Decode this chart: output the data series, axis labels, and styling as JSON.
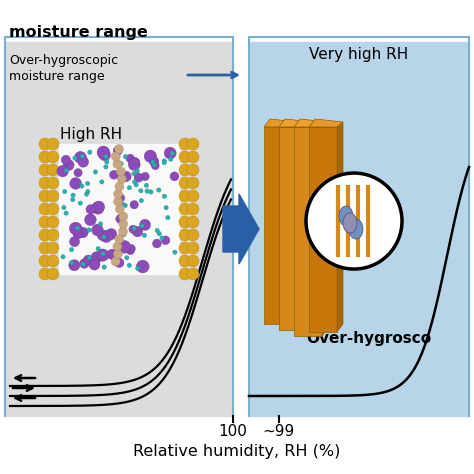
{
  "bg_color_left": "#dcdcdc",
  "bg_color_right": "#b8d4e8",
  "arrow_color": "#2b5fa5",
  "curve_color": "#000000",
  "text_color": "#000000",
  "gold_color": "#DAA520",
  "purple_color": "#8B4BB8",
  "teal_color": "#2ab0b0",
  "brown_color": "#c8a882",
  "orange_color": "#D4891A",
  "orange_dark": "#B8720A",
  "figure_bg": "#ffffff",
  "left_panel": {
    "title_line1": "moisture range",
    "label1_line1": "Over-hygroscopic",
    "label1_line2": "moisture range",
    "label2": "High RH",
    "tick_label": "100"
  },
  "right_panel": {
    "label1": "Very high RH",
    "label2": "Over-hygrosco",
    "tick_label": "~99"
  },
  "xlabel": "Relative humidity, RH (%)"
}
